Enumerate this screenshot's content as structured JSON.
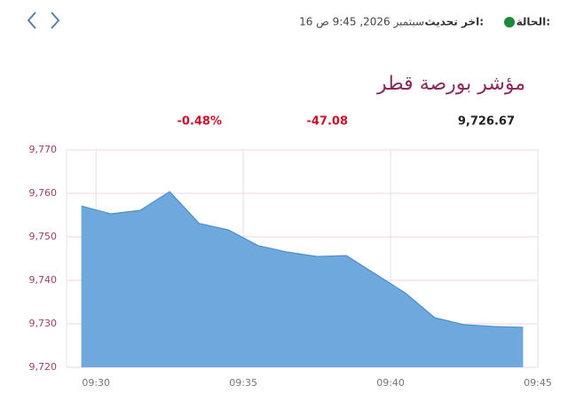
{
  "header": {
    "status_label": "الحالة:",
    "update_label": "اخر تحديث:",
    "update_time": "16 سبتمبر 2026, 9:45 ص"
  },
  "index": {
    "name": "مؤشر بورصة قطر",
    "value": "9,726.67",
    "change": "-47.08",
    "change_percent": "-0.48%"
  },
  "chart_data": {
    "type": "area",
    "color": "#6fa8dc",
    "line_color": "#4a8fcf",
    "x": [
      "09:29:30",
      "09:30:30",
      "09:31:30",
      "09:32:30",
      "09:33:30",
      "09:34:30",
      "09:35:30",
      "09:36:30",
      "09:37:30",
      "09:38:30",
      "09:39:30",
      "09:40:30",
      "09:41:30",
      "09:42:30",
      "09:43:30",
      "09:44:30"
    ],
    "values": [
      9757.1,
      9755.3,
      9756.1,
      9760.4,
      9753.1,
      9751.6,
      9748.0,
      9746.5,
      9745.5,
      9745.7,
      9741.4,
      9737.1,
      9731.4,
      9729.8,
      9729.4,
      9729.2
    ],
    "xlim": [
      "09:29",
      "09:45"
    ],
    "xticks": [
      "09:30",
      "09:35",
      "09:40",
      "09:45"
    ],
    "ylim": [
      9720,
      9770
    ],
    "yticks": [
      {
        "value": 9720,
        "label": "9,720"
      },
      {
        "value": 9730,
        "label": "9,730"
      },
      {
        "value": 9740,
        "label": "9,740"
      },
      {
        "value": 9750,
        "label": "9,750"
      },
      {
        "value": 9760,
        "label": "9,760"
      },
      {
        "value": 9770,
        "label": "9,770"
      }
    ],
    "grid": true
  }
}
